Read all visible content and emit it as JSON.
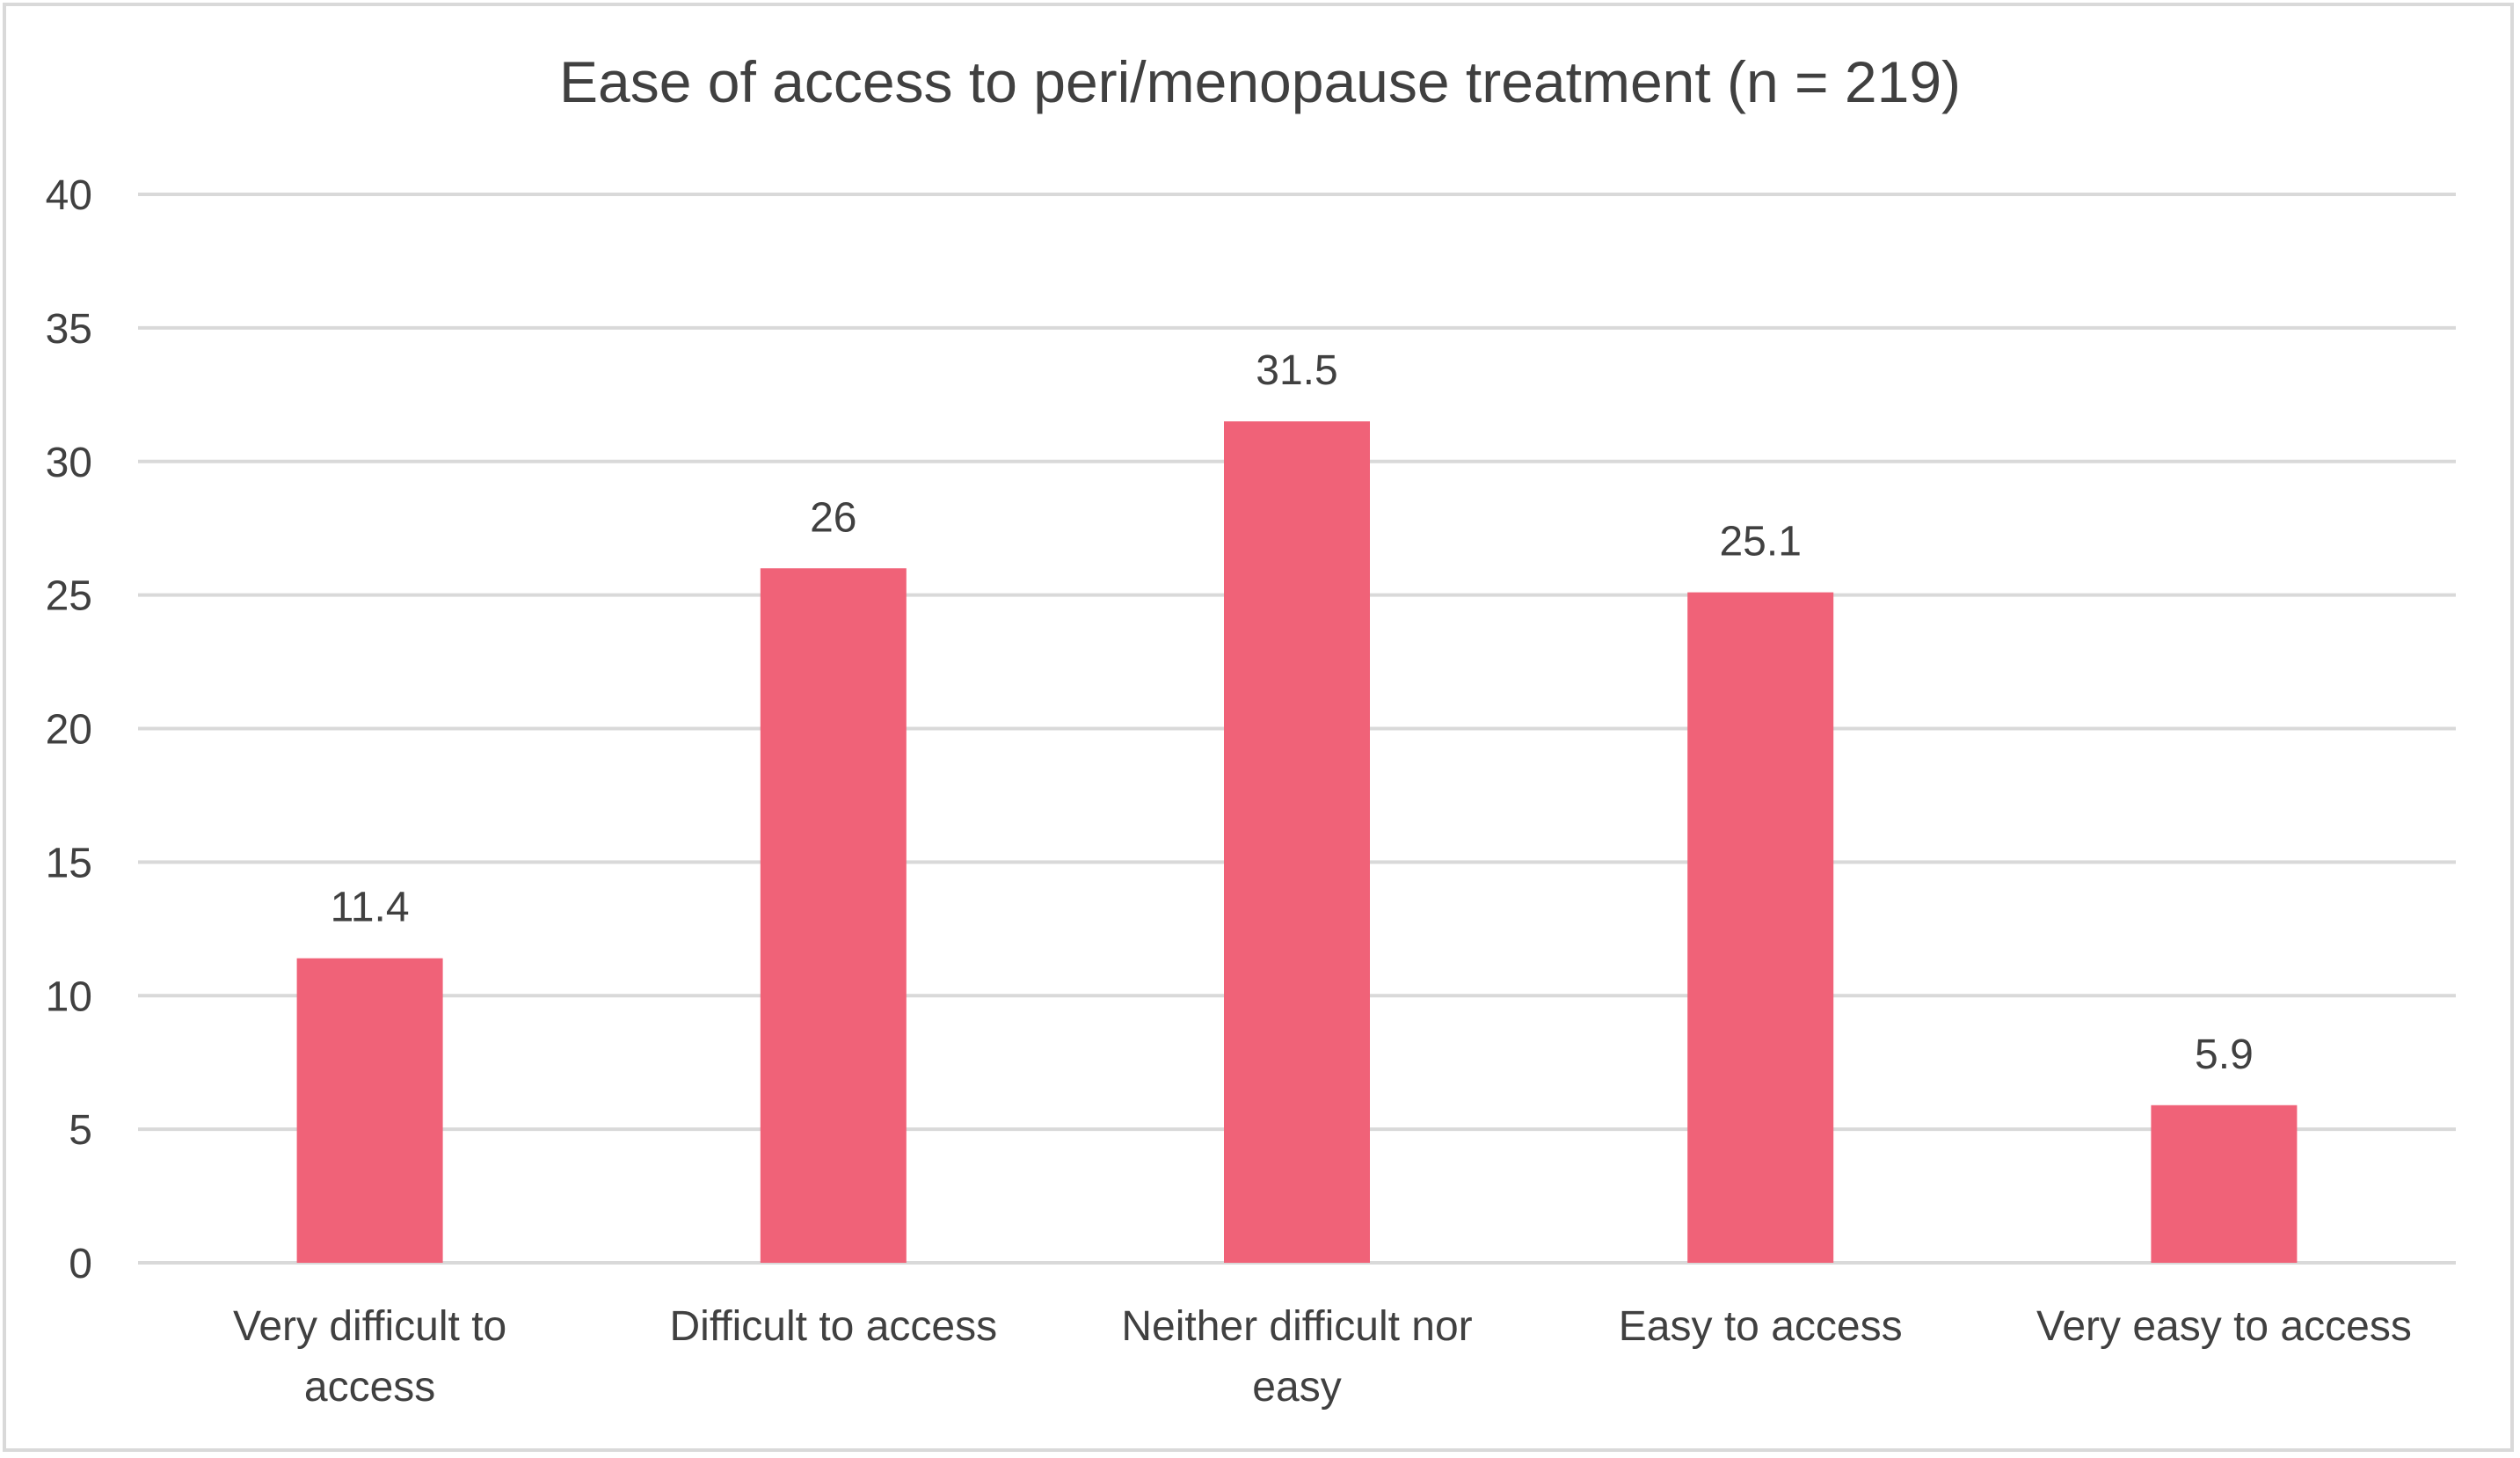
{
  "chart_data": {
    "type": "bar",
    "title": "Ease of access to peri/menopause treatment (n = 219)",
    "categories": [
      [
        "Very difficult to",
        "access"
      ],
      [
        "Difficult to access"
      ],
      [
        "Neither difficult nor",
        "easy"
      ],
      [
        "Easy to access"
      ],
      [
        "Very easy to access"
      ]
    ],
    "values": [
      11.4,
      26,
      31.5,
      25.1,
      5.9
    ],
    "value_labels": [
      "11.4",
      "26",
      "31.5",
      "25.1",
      "5.9"
    ],
    "ylim": [
      0,
      40
    ],
    "yticks": [
      0,
      5,
      10,
      15,
      20,
      25,
      30,
      35,
      40
    ],
    "xlabel": "",
    "ylabel": "",
    "grid": true,
    "legend": "none",
    "colors": {
      "bar": "#f06278",
      "grid": "#d9d9d9",
      "text": "#404040",
      "border": "#d9d9d9"
    }
  }
}
